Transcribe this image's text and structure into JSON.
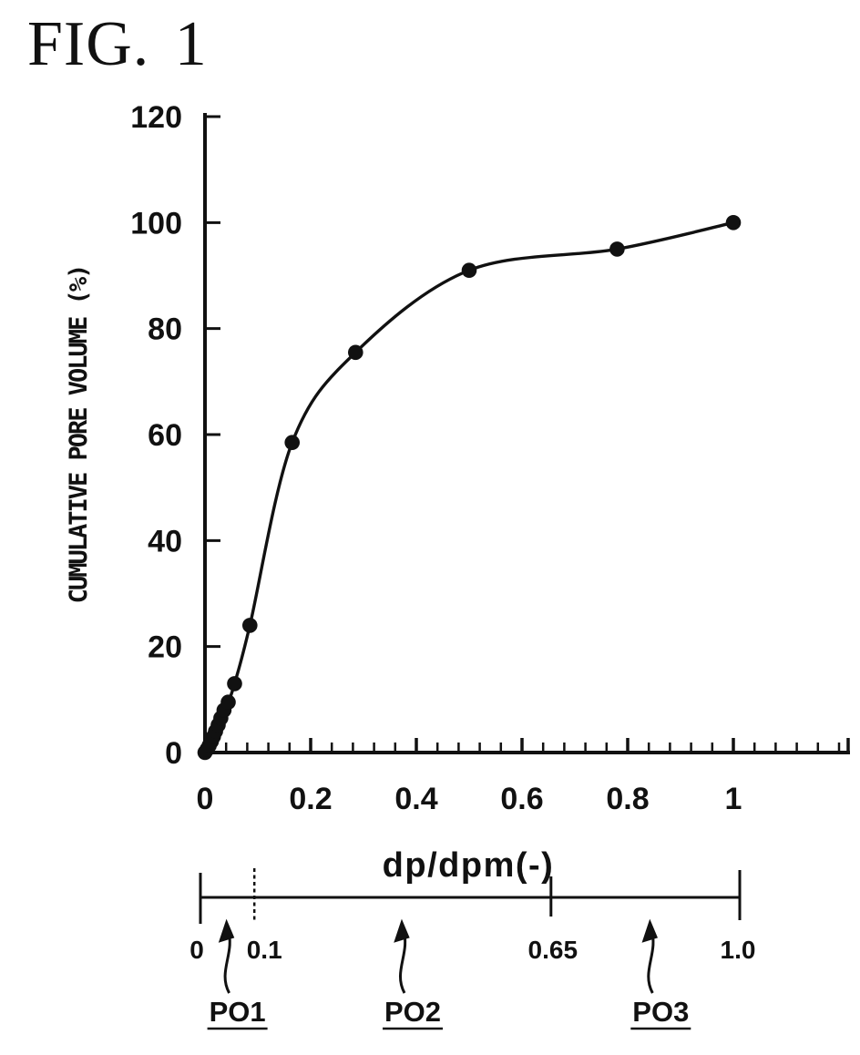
{
  "figure": {
    "title": "FIG. 1"
  },
  "chart_data": {
    "type": "line",
    "title": "FIG. 1",
    "xlabel": "dp/dpm(-)",
    "ylabel": "CUMULATIVE PORE VOLUME (%)",
    "xlim": [
      0,
      1.22
    ],
    "ylim": [
      0,
      120
    ],
    "x_tick_values": [
      0,
      0.2,
      0.4,
      0.6,
      0.8,
      1
    ],
    "x_tick_labels": [
      "0",
      "0.2",
      "0.4",
      "0.6",
      "0.8",
      "1"
    ],
    "x_minor_step": 0.04,
    "y_tick_values": [
      0,
      20,
      40,
      60,
      80,
      100,
      120
    ],
    "y_tick_labels": [
      "0",
      "20",
      "40",
      "60",
      "80",
      "100",
      "120"
    ],
    "grid": false,
    "legend": "none",
    "marker": "filled-circle",
    "colors": {
      "line": "#111111",
      "marker": "#111111",
      "text": "#111111",
      "background": "#ffffff"
    },
    "series": [
      {
        "name": "cumulative pore volume",
        "points": [
          [
            0,
            0
          ],
          [
            0.004,
            0.6
          ],
          [
            0.008,
            1.3
          ],
          [
            0.012,
            2.1
          ],
          [
            0.016,
            3.0
          ],
          [
            0.02,
            4.0
          ],
          [
            0.025,
            5.2
          ],
          [
            0.03,
            6.5
          ],
          [
            0.036,
            8.0
          ],
          [
            0.044,
            9.5
          ],
          [
            0.056,
            13
          ],
          [
            0.085,
            24
          ],
          [
            0.165,
            58.5
          ],
          [
            0.285,
            75.5
          ],
          [
            0.5,
            91
          ],
          [
            0.78,
            95
          ],
          [
            1.0,
            100
          ]
        ]
      }
    ]
  },
  "bottom_scale": {
    "unit_label": "dp/dpm(-)",
    "ticks": [
      {
        "value": 0,
        "label": "0",
        "style": "solid"
      },
      {
        "value": 0.1,
        "label": "0.1",
        "style": "dashed"
      },
      {
        "value": 0.65,
        "label": "0.65",
        "style": "solid"
      },
      {
        "value": 1.0,
        "label": "1.0",
        "style": "solid"
      }
    ],
    "regions": [
      {
        "label": "PO1",
        "arrow_x": 0.05
      },
      {
        "label": "PO2",
        "arrow_x": 0.375
      },
      {
        "label": "PO3",
        "arrow_x": 0.835
      }
    ]
  }
}
